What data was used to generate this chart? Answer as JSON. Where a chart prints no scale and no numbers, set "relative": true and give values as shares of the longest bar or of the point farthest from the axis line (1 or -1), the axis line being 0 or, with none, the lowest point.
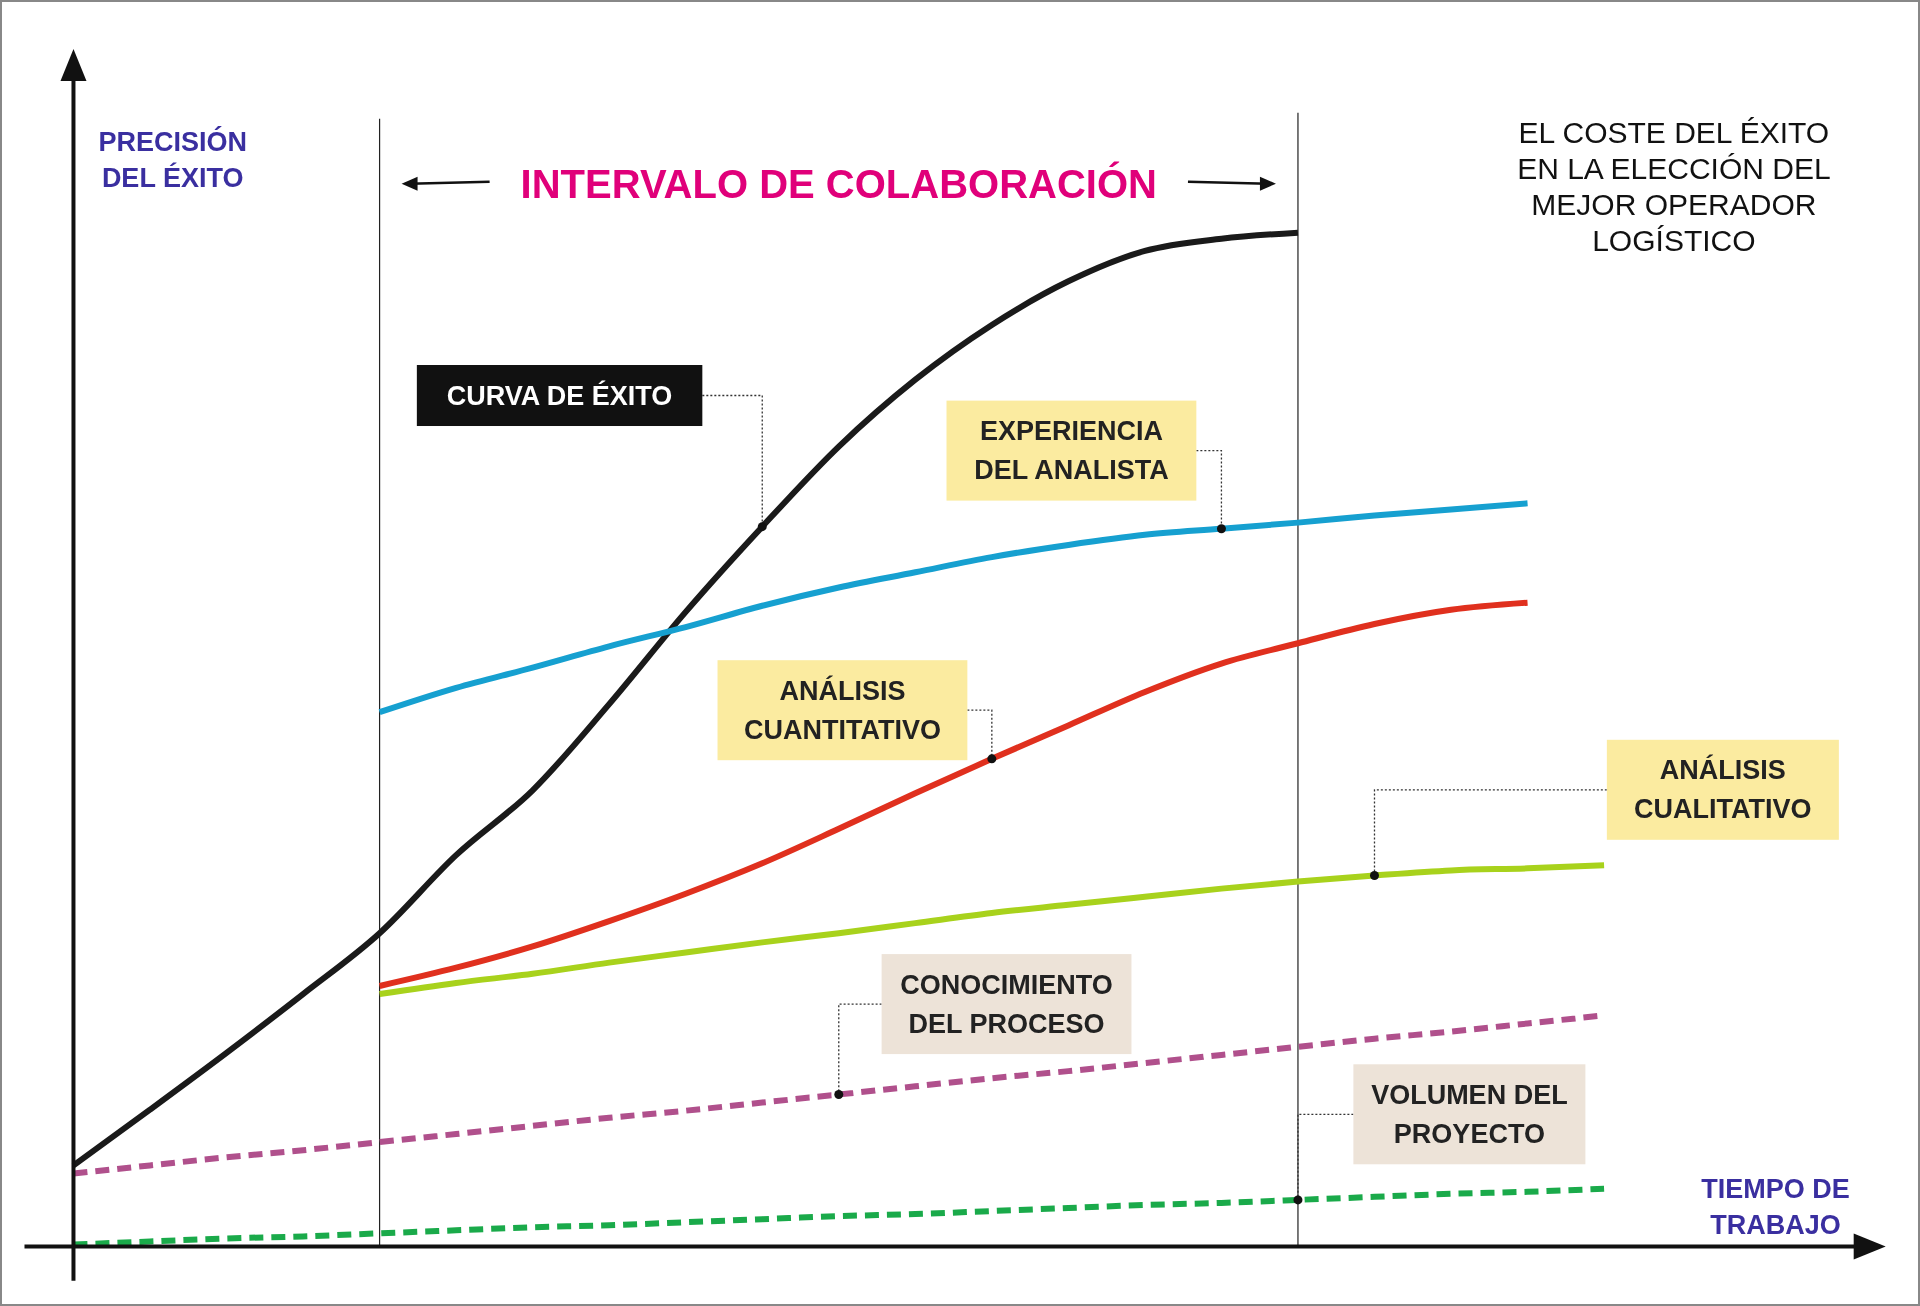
{
  "chart_data": {
    "type": "line",
    "relative": true,
    "title": "EL COSTE DEL ÉXITO EN LA ELECCIÓN DEL MEJOR OPERADOR LOGÍSTICO",
    "ylabel": "PRECISIÓN DEL ÉXITO",
    "xlabel": "TIEMPO DE TRABAJO",
    "categories": [
      null,
      null,
      null,
      null,
      null,
      null,
      null,
      null,
      null,
      null,
      null,
      null,
      null,
      null,
      null,
      null,
      null,
      null,
      null,
      null,
      null
    ],
    "annotations": [
      "INTERVALO DE COLABORACIÓN"
    ],
    "series": [
      {
        "name": "CURVA DE ÉXITO",
        "color": "#1a1a1a",
        "line_style": "solid",
        "values": [
          0.08,
          0.135,
          0.191,
          0.249,
          0.309,
          0.386,
          0.45,
          0.535,
          0.626,
          0.71,
          0.789,
          0.855,
          0.909,
          0.952,
          0.982,
          0.994,
          1.0,
          null,
          null,
          null,
          null
        ]
      },
      {
        "name": "EXPERIENCIA DEL ANALISTA",
        "color": "#16a0d0",
        "line_style": "solid",
        "values": [
          null,
          null,
          null,
          null,
          0.527,
          0.551,
          0.571,
          0.592,
          0.611,
          0.632,
          0.65,
          0.665,
          0.68,
          0.692,
          0.702,
          0.708,
          0.714,
          0.721,
          0.727,
          0.733,
          null
        ]
      },
      {
        "name": "ANÁLISIS CUANTITATIVO",
        "color": "#e0301e",
        "line_style": "solid",
        "values": [
          null,
          null,
          null,
          null,
          0.257,
          0.275,
          0.296,
          0.321,
          0.348,
          0.378,
          0.412,
          0.447,
          0.481,
          0.514,
          0.547,
          0.575,
          0.595,
          0.614,
          0.628,
          0.635,
          null
        ]
      },
      {
        "name": "ANÁLISIS CUALITATIVO",
        "color": "#a8d21c",
        "line_style": "solid",
        "values": [
          null,
          null,
          null,
          null,
          0.249,
          0.26,
          0.269,
          0.28,
          0.29,
          0.3,
          0.309,
          0.319,
          0.329,
          0.337,
          0.345,
          0.353,
          0.36,
          0.366,
          0.371,
          0.373,
          0.376
        ]
      },
      {
        "name": "CONOCIMIENTO DEL PROCESO",
        "color": "#b0508c",
        "line_style": "dashed",
        "values": [
          0.072,
          0.08,
          0.088,
          0.095,
          0.103,
          0.111,
          0.119,
          0.127,
          0.134,
          0.142,
          0.15,
          0.158,
          0.166,
          0.173,
          0.181,
          0.189,
          0.197,
          0.205,
          0.212,
          0.22,
          0.228
        ]
      },
      {
        "name": "VOLUMEN DEL PROYECTO",
        "color": "#1aaa4a",
        "line_style": "dashed",
        "values": [
          0.002,
          0.005,
          0.008,
          0.01,
          0.013,
          0.016,
          0.019,
          0.021,
          0.024,
          0.027,
          0.03,
          0.032,
          0.035,
          0.038,
          0.041,
          0.043,
          0.046,
          0.049,
          0.052,
          0.054,
          0.057
        ]
      }
    ]
  }
}
